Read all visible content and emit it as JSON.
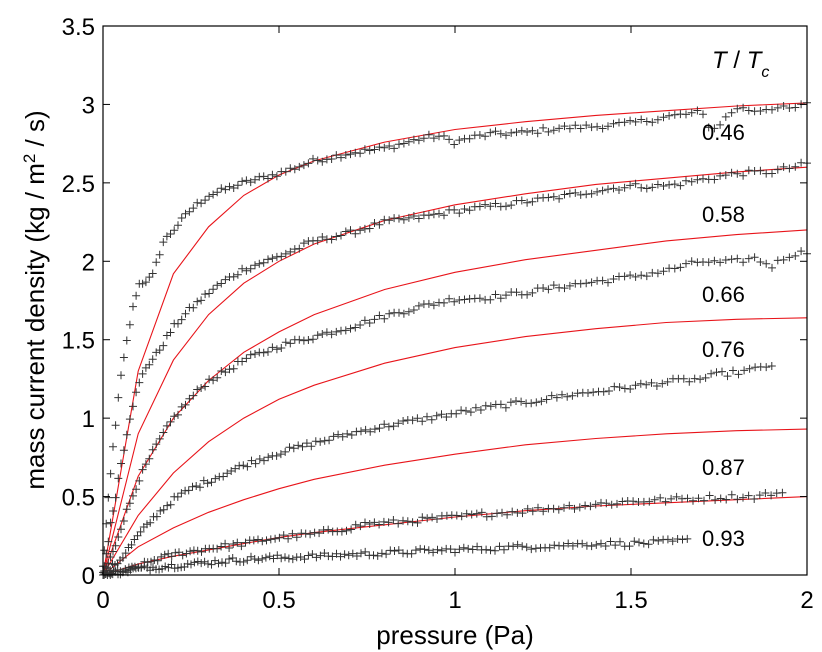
{
  "chart_data": {
    "type": "scatter",
    "title": "",
    "xlabel": "pressure (Pa)",
    "ylabel": "mass current density (kg / m",
    "ylabel_sup": "2",
    "ylabel_tail": " / s)",
    "xlim": [
      0,
      2
    ],
    "ylim": [
      0,
      3.5
    ],
    "xticks": [
      0,
      0.5,
      1,
      1.5,
      2
    ],
    "xtick_labels": [
      "0",
      "0.5",
      "1",
      "1.5",
      "2"
    ],
    "yticks": [
      0,
      0.5,
      1,
      1.5,
      2,
      2.5,
      3,
      3.5
    ],
    "ytick_labels": [
      "0",
      "0.5",
      "1",
      "1.5",
      "2",
      "2.5",
      "3",
      "3.5"
    ],
    "legend_title": {
      "T": "T",
      "slash": " / ",
      "Tc_base": "T",
      "Tc_sub": "c"
    },
    "colors": {
      "fit": "#e8141a",
      "data": "#333333",
      "axis": "#000000"
    },
    "marker": "plus",
    "series": [
      {
        "name": "0.46",
        "data_x_max": 2.0,
        "data": [
          [
            0,
            0.05
          ],
          [
            0.01,
            0.35
          ],
          [
            0.02,
            0.6
          ],
          [
            0.03,
            0.85
          ],
          [
            0.05,
            1.25
          ],
          [
            0.08,
            1.65
          ],
          [
            0.1,
            1.85
          ],
          [
            0.14,
            1.9
          ],
          [
            0.17,
            2.12
          ],
          [
            0.2,
            2.2
          ],
          [
            0.25,
            2.33
          ],
          [
            0.3,
            2.42
          ],
          [
            0.35,
            2.46
          ],
          [
            0.4,
            2.5
          ],
          [
            0.5,
            2.56
          ],
          [
            0.6,
            2.64
          ],
          [
            0.7,
            2.69
          ],
          [
            0.8,
            2.72
          ],
          [
            0.9,
            2.78
          ],
          [
            0.95,
            2.8
          ],
          [
            1.0,
            2.76
          ],
          [
            1.05,
            2.79
          ],
          [
            1.1,
            2.81
          ],
          [
            1.2,
            2.82
          ],
          [
            1.3,
            2.85
          ],
          [
            1.4,
            2.86
          ],
          [
            1.5,
            2.88
          ],
          [
            1.6,
            2.92
          ],
          [
            1.7,
            2.95
          ],
          [
            1.73,
            2.83
          ],
          [
            1.8,
            2.98
          ],
          [
            1.85,
            2.96
          ],
          [
            1.9,
            2.98
          ],
          [
            1.95,
            2.97
          ],
          [
            2.0,
            3.0
          ]
        ],
        "fit": [
          [
            0,
            0
          ],
          [
            0.1,
            1.3
          ],
          [
            0.2,
            1.92
          ],
          [
            0.3,
            2.22
          ],
          [
            0.4,
            2.42
          ],
          [
            0.5,
            2.55
          ],
          [
            0.6,
            2.64
          ],
          [
            0.8,
            2.76
          ],
          [
            1.0,
            2.84
          ],
          [
            1.2,
            2.89
          ],
          [
            1.4,
            2.93
          ],
          [
            1.6,
            2.96
          ],
          [
            1.8,
            2.99
          ],
          [
            2.0,
            3.01
          ]
        ]
      },
      {
        "name": "0.58",
        "data_x_max": 2.0,
        "data": [
          [
            0,
            0
          ],
          [
            0.02,
            0.3
          ],
          [
            0.05,
            0.7
          ],
          [
            0.08,
            1.05
          ],
          [
            0.1,
            1.2
          ],
          [
            0.12,
            1.32
          ],
          [
            0.15,
            1.4
          ],
          [
            0.2,
            1.58
          ],
          [
            0.25,
            1.7
          ],
          [
            0.3,
            1.8
          ],
          [
            0.35,
            1.88
          ],
          [
            0.4,
            1.95
          ],
          [
            0.5,
            2.03
          ],
          [
            0.6,
            2.13
          ],
          [
            0.7,
            2.18
          ],
          [
            0.8,
            2.25
          ],
          [
            0.9,
            2.28
          ],
          [
            1.0,
            2.32
          ],
          [
            1.1,
            2.35
          ],
          [
            1.2,
            2.38
          ],
          [
            1.3,
            2.41
          ],
          [
            1.4,
            2.45
          ],
          [
            1.5,
            2.48
          ],
          [
            1.6,
            2.48
          ],
          [
            1.7,
            2.52
          ],
          [
            1.8,
            2.56
          ],
          [
            1.9,
            2.57
          ],
          [
            2.0,
            2.62
          ]
        ],
        "fit": [
          [
            0,
            0
          ],
          [
            0.1,
            0.9
          ],
          [
            0.2,
            1.37
          ],
          [
            0.3,
            1.66
          ],
          [
            0.4,
            1.86
          ],
          [
            0.5,
            2.0
          ],
          [
            0.6,
            2.11
          ],
          [
            0.8,
            2.26
          ],
          [
            1.0,
            2.36
          ],
          [
            1.2,
            2.43
          ],
          [
            1.4,
            2.49
          ],
          [
            1.6,
            2.53
          ],
          [
            1.8,
            2.57
          ],
          [
            2.0,
            2.6
          ]
        ]
      },
      {
        "name": "0.66",
        "data_x_max": 2.0,
        "data": [
          [
            0,
            0
          ],
          [
            0.03,
            0.15
          ],
          [
            0.05,
            0.3
          ],
          [
            0.1,
            0.6
          ],
          [
            0.15,
            0.82
          ],
          [
            0.2,
            1.0
          ],
          [
            0.25,
            1.13
          ],
          [
            0.3,
            1.24
          ],
          [
            0.35,
            1.3
          ],
          [
            0.4,
            1.37
          ],
          [
            0.5,
            1.46
          ],
          [
            0.6,
            1.52
          ],
          [
            0.7,
            1.58
          ],
          [
            0.8,
            1.65
          ],
          [
            0.9,
            1.71
          ],
          [
            1.0,
            1.76
          ],
          [
            1.1,
            1.77
          ],
          [
            1.2,
            1.8
          ],
          [
            1.3,
            1.84
          ],
          [
            1.4,
            1.87
          ],
          [
            1.5,
            1.9
          ],
          [
            1.6,
            1.94
          ],
          [
            1.7,
            2.0
          ],
          [
            1.75,
            1.99
          ],
          [
            1.8,
            2.0
          ],
          [
            1.85,
            2.02
          ],
          [
            1.9,
            1.97
          ],
          [
            1.95,
            2.04
          ],
          [
            2.0,
            2.06
          ]
        ],
        "fit": [
          [
            0,
            0
          ],
          [
            0.1,
            0.63
          ],
          [
            0.2,
            1.0
          ],
          [
            0.3,
            1.24
          ],
          [
            0.4,
            1.42
          ],
          [
            0.5,
            1.55
          ],
          [
            0.6,
            1.66
          ],
          [
            0.8,
            1.82
          ],
          [
            1.0,
            1.93
          ],
          [
            1.2,
            2.01
          ],
          [
            1.4,
            2.07
          ],
          [
            1.6,
            2.13
          ],
          [
            1.8,
            2.17
          ],
          [
            2.0,
            2.2
          ]
        ]
      },
      {
        "name": "0.76",
        "data_x_max": 1.9,
        "data": [
          [
            0,
            0
          ],
          [
            0.05,
            0.1
          ],
          [
            0.1,
            0.25
          ],
          [
            0.15,
            0.38
          ],
          [
            0.2,
            0.48
          ],
          [
            0.25,
            0.55
          ],
          [
            0.3,
            0.6
          ],
          [
            0.35,
            0.65
          ],
          [
            0.4,
            0.7
          ],
          [
            0.5,
            0.78
          ],
          [
            0.6,
            0.84
          ],
          [
            0.7,
            0.9
          ],
          [
            0.8,
            0.95
          ],
          [
            0.9,
            0.99
          ],
          [
            1.0,
            1.03
          ],
          [
            1.1,
            1.07
          ],
          [
            1.2,
            1.1
          ],
          [
            1.3,
            1.14
          ],
          [
            1.4,
            1.17
          ],
          [
            1.5,
            1.2
          ],
          [
            1.6,
            1.23
          ],
          [
            1.7,
            1.25
          ],
          [
            1.75,
            1.28
          ],
          [
            1.8,
            1.29
          ],
          [
            1.85,
            1.31
          ],
          [
            1.9,
            1.34
          ]
        ],
        "fit": [
          [
            0,
            0
          ],
          [
            0.1,
            0.38
          ],
          [
            0.2,
            0.65
          ],
          [
            0.3,
            0.85
          ],
          [
            0.4,
            1.0
          ],
          [
            0.5,
            1.12
          ],
          [
            0.6,
            1.21
          ],
          [
            0.8,
            1.35
          ],
          [
            1.0,
            1.45
          ],
          [
            1.2,
            1.52
          ],
          [
            1.4,
            1.57
          ],
          [
            1.6,
            1.61
          ],
          [
            1.8,
            1.63
          ],
          [
            2.0,
            1.64
          ]
        ]
      },
      {
        "name": "0.87",
        "data_x_max": 1.93,
        "data": [
          [
            0,
            0
          ],
          [
            0.05,
            0.02
          ],
          [
            0.1,
            0.05
          ],
          [
            0.15,
            0.1
          ],
          [
            0.2,
            0.13
          ],
          [
            0.3,
            0.17
          ],
          [
            0.4,
            0.2
          ],
          [
            0.5,
            0.24
          ],
          [
            0.6,
            0.26
          ],
          [
            0.7,
            0.3
          ],
          [
            0.75,
            0.33
          ],
          [
            0.8,
            0.33
          ],
          [
            0.9,
            0.35
          ],
          [
            1.0,
            0.37
          ],
          [
            1.1,
            0.39
          ],
          [
            1.2,
            0.41
          ],
          [
            1.3,
            0.43
          ],
          [
            1.4,
            0.45
          ],
          [
            1.5,
            0.47
          ],
          [
            1.6,
            0.48
          ],
          [
            1.7,
            0.49
          ],
          [
            1.8,
            0.5
          ],
          [
            1.85,
            0.5
          ],
          [
            1.9,
            0.52
          ],
          [
            1.93,
            0.51
          ]
        ],
        "fit": [
          [
            0,
            0
          ],
          [
            0.1,
            0.18
          ],
          [
            0.2,
            0.3
          ],
          [
            0.3,
            0.4
          ],
          [
            0.4,
            0.48
          ],
          [
            0.5,
            0.55
          ],
          [
            0.6,
            0.61
          ],
          [
            0.8,
            0.7
          ],
          [
            1.0,
            0.77
          ],
          [
            1.2,
            0.83
          ],
          [
            1.4,
            0.87
          ],
          [
            1.6,
            0.9
          ],
          [
            1.8,
            0.92
          ],
          [
            2.0,
            0.93
          ]
        ]
      },
      {
        "name": "0.93",
        "data_x_max": 1.66,
        "data": [
          [
            0,
            0
          ],
          [
            0.05,
            0.02
          ],
          [
            0.1,
            0.04
          ],
          [
            0.15,
            0.05
          ],
          [
            0.2,
            0.06
          ],
          [
            0.25,
            0.07
          ],
          [
            0.3,
            0.08
          ],
          [
            0.35,
            0.09
          ],
          [
            0.4,
            0.1
          ],
          [
            0.5,
            0.11
          ],
          [
            0.6,
            0.12
          ],
          [
            0.7,
            0.13
          ],
          [
            0.8,
            0.14
          ],
          [
            0.9,
            0.15
          ],
          [
            1.0,
            0.16
          ],
          [
            1.1,
            0.17
          ],
          [
            1.2,
            0.18
          ],
          [
            1.3,
            0.19
          ],
          [
            1.4,
            0.2
          ],
          [
            1.5,
            0.2
          ],
          [
            1.6,
            0.21
          ],
          [
            1.66,
            0.22
          ]
        ],
        "fit": [
          [
            0,
            0
          ],
          [
            0.1,
            0.07
          ],
          [
            0.2,
            0.12
          ],
          [
            0.3,
            0.16
          ],
          [
            0.4,
            0.2
          ],
          [
            0.5,
            0.24
          ],
          [
            0.6,
            0.27
          ],
          [
            0.8,
            0.32
          ],
          [
            1.0,
            0.37
          ],
          [
            1.2,
            0.41
          ],
          [
            1.4,
            0.44
          ],
          [
            1.6,
            0.46
          ],
          [
            1.8,
            0.48
          ],
          [
            2.0,
            0.5
          ]
        ]
      }
    ]
  }
}
